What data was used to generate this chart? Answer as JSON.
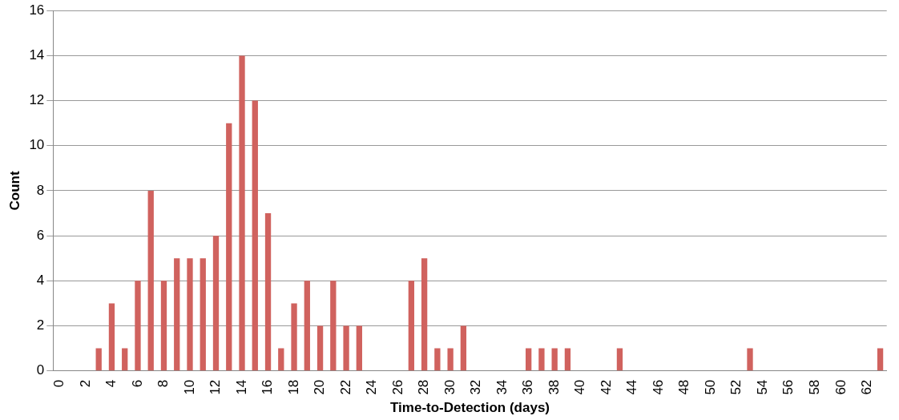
{
  "chart_data": {
    "type": "bar",
    "xlabel": "Time-to-Detection (days)",
    "ylabel": "Count",
    "categories": [
      "0",
      null,
      "2",
      null,
      "4",
      null,
      "6",
      null,
      "8",
      null,
      "10",
      null,
      "12",
      null,
      "14",
      null,
      "16",
      null,
      "18",
      null,
      "20",
      null,
      "22",
      null,
      "24",
      null,
      "26",
      null,
      "28",
      null,
      "30",
      null,
      "32",
      null,
      "34",
      null,
      "36",
      null,
      "38",
      null,
      "40",
      null,
      "42",
      null,
      "44",
      null,
      "46",
      null,
      "48",
      null,
      "50",
      null,
      "52",
      null,
      "54",
      null,
      "56",
      null,
      "58",
      null,
      "60",
      null,
      "62",
      null
    ],
    "values": [
      0,
      0,
      0,
      1,
      3,
      1,
      4,
      8,
      4,
      5,
      5,
      5,
      6,
      11,
      14,
      12,
      7,
      1,
      3,
      4,
      2,
      4,
      2,
      2,
      0,
      0,
      0,
      4,
      5,
      1,
      1,
      2,
      0,
      0,
      0,
      0,
      1,
      1,
      1,
      1,
      0,
      0,
      0,
      1,
      0,
      0,
      0,
      0,
      0,
      0,
      0,
      0,
      0,
      1,
      0,
      0,
      0,
      0,
      0,
      0,
      0,
      0,
      0,
      1
    ],
    "color": "#d0625e",
    "ylim": [
      0,
      16
    ],
    "yticks": [
      0,
      2,
      4,
      6,
      8,
      10,
      12,
      14,
      16
    ],
    "grid": "y",
    "legend": false
  }
}
